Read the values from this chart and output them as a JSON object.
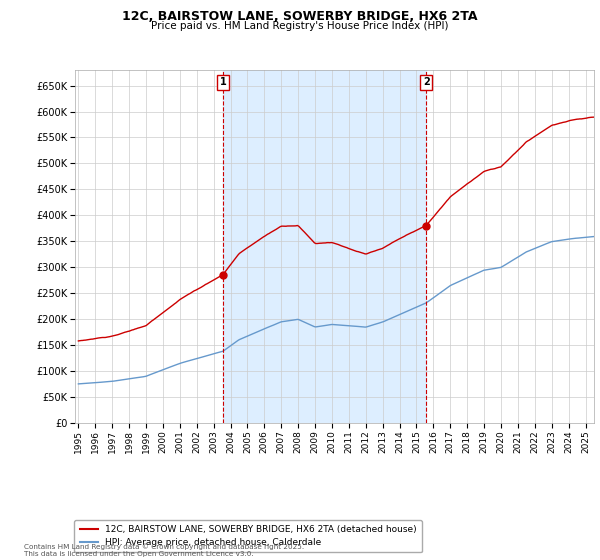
{
  "title": "12C, BAIRSTOW LANE, SOWERBY BRIDGE, HX6 2TA",
  "subtitle": "Price paid vs. HM Land Registry's House Price Index (HPI)",
  "ylabel_ticks": [
    "£0",
    "£50K",
    "£100K",
    "£150K",
    "£200K",
    "£250K",
    "£300K",
    "£350K",
    "£400K",
    "£450K",
    "£500K",
    "£550K",
    "£600K",
    "£650K"
  ],
  "ytick_vals": [
    0,
    50000,
    100000,
    150000,
    200000,
    250000,
    300000,
    350000,
    400000,
    450000,
    500000,
    550000,
    600000,
    650000
  ],
  "ylim": [
    0,
    680000
  ],
  "xlim_start": 1994.8,
  "xlim_end": 2025.5,
  "hpi_color": "#6699cc",
  "price_color": "#cc0000",
  "shade_color": "#ddeeff",
  "marker1_year": 2003.55,
  "marker2_year": 2015.58,
  "sale1_price": 284995,
  "sale2_price": 380000,
  "legend_label_red": "12C, BAIRSTOW LANE, SOWERBY BRIDGE, HX6 2TA (detached house)",
  "legend_label_blue": "HPI: Average price, detached house, Calderdale",
  "annotation1": "1",
  "annotation2": "2",
  "footer": "Contains HM Land Registry data © Crown copyright and database right 2025.\nThis data is licensed under the Open Government Licence v3.0.",
  "background_color": "#ffffff",
  "grid_color": "#cccccc"
}
